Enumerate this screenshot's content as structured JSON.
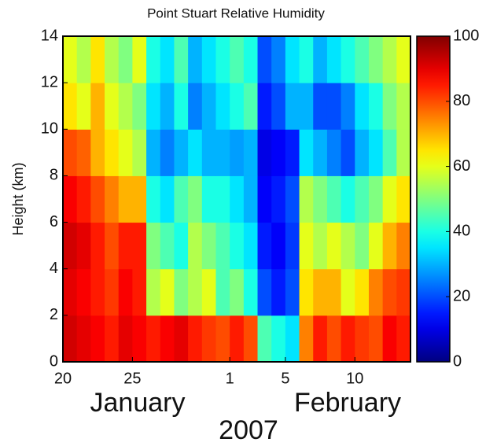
{
  "chart_data": {
    "type": "heatmap",
    "title": "Point Stuart Relative Humidity",
    "ylabel": "Height (km)",
    "month_labels": [
      "January",
      "February"
    ],
    "year_label": "2007",
    "x": [
      "2007-01-20",
      "2007-01-21",
      "2007-01-22",
      "2007-01-23",
      "2007-01-24",
      "2007-01-25",
      "2007-01-26",
      "2007-01-27",
      "2007-01-28",
      "2007-01-29",
      "2007-01-30",
      "2007-01-31",
      "2007-02-01",
      "2007-02-02",
      "2007-02-03",
      "2007-02-04",
      "2007-02-05",
      "2007-02-06",
      "2007-02-07",
      "2007-02-08",
      "2007-02-09",
      "2007-02-10",
      "2007-02-11",
      "2007-02-12",
      "2007-02-13"
    ],
    "ybins": [
      0,
      2,
      4,
      6,
      8,
      10,
      12,
      14
    ],
    "values": [
      [
        92,
        90,
        88,
        85,
        90,
        88,
        85,
        88,
        90,
        85,
        82,
        80,
        85,
        80,
        45,
        40,
        35,
        75,
        85,
        80,
        85,
        82,
        80,
        88,
        85
      ],
      [
        90,
        88,
        85,
        82,
        88,
        85,
        55,
        60,
        50,
        55,
        60,
        45,
        50,
        40,
        20,
        15,
        20,
        65,
        70,
        70,
        60,
        65,
        75,
        80,
        82
      ],
      [
        92,
        90,
        85,
        80,
        85,
        85,
        50,
        45,
        40,
        55,
        50,
        45,
        40,
        35,
        15,
        12,
        18,
        60,
        55,
        60,
        55,
        50,
        60,
        70,
        75
      ],
      [
        88,
        85,
        80,
        75,
        70,
        70,
        40,
        35,
        45,
        50,
        40,
        40,
        35,
        30,
        12,
        15,
        20,
        55,
        50,
        45,
        40,
        45,
        50,
        60,
        65
      ],
      [
        80,
        78,
        70,
        65,
        60,
        55,
        30,
        25,
        30,
        35,
        30,
        30,
        28,
        30,
        10,
        12,
        15,
        35,
        30,
        25,
        20,
        30,
        35,
        45,
        55
      ],
      [
        65,
        60,
        70,
        60,
        55,
        50,
        35,
        30,
        40,
        25,
        30,
        35,
        40,
        45,
        15,
        20,
        30,
        30,
        20,
        20,
        25,
        35,
        40,
        50,
        55
      ],
      [
        60,
        55,
        65,
        55,
        50,
        60,
        40,
        35,
        45,
        30,
        35,
        40,
        45,
        40,
        20,
        25,
        35,
        40,
        30,
        35,
        40,
        45,
        50,
        55,
        60
      ]
    ],
    "xlim": [
      "2007-01-20",
      "2007-02-14"
    ],
    "xticks": [
      {
        "value": "2007-01-20",
        "label": "20"
      },
      {
        "value": "2007-01-25",
        "label": "25"
      },
      {
        "value": "2007-02-01",
        "label": "1"
      },
      {
        "value": "2007-02-05",
        "label": "5"
      },
      {
        "value": "2007-02-10",
        "label": "10"
      }
    ],
    "ylim": [
      0,
      14
    ],
    "yticks": [
      0,
      2,
      4,
      6,
      8,
      10,
      12,
      14
    ],
    "colormap": "jet",
    "zlim": [
      0,
      100
    ],
    "zticks": [
      0,
      20,
      40,
      60,
      80,
      100
    ]
  }
}
